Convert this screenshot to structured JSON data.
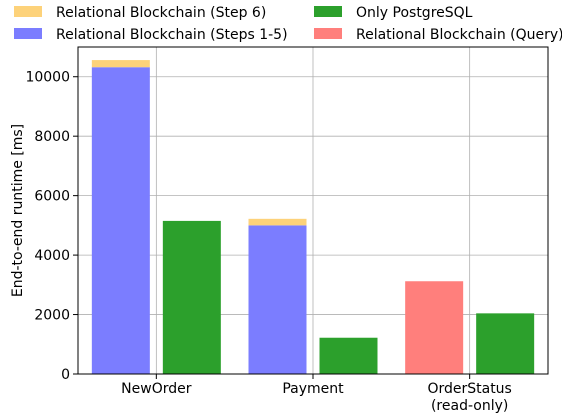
{
  "chart_data": {
    "type": "bar",
    "stacked": true,
    "ylabel": "End-to-end runtime [ms]",
    "xlabel": "",
    "ylim": [
      0,
      11000
    ],
    "yticks": [
      0,
      2000,
      4000,
      6000,
      8000,
      10000
    ],
    "grid": true,
    "legend_position": "top",
    "categories": [
      {
        "label": "NewOrder",
        "label2": ""
      },
      {
        "label": "Payment",
        "label2": ""
      },
      {
        "label": "OrderStatus",
        "label2": "(read-only)"
      }
    ],
    "series": [
      {
        "name": "Relational Blockchain (Step 6)",
        "color": "#fdd27a"
      },
      {
        "name": "Relational Blockchain (Steps 1-5)",
        "color": "#7b7dff"
      },
      {
        "name": "Only PostgreSQL",
        "color": "#2ca02c"
      },
      {
        "name": "Relational Blockchain (Query)",
        "color": "#ff7f7c"
      }
    ],
    "groups": [
      {
        "category": "NewOrder",
        "bars": [
          {
            "kind": "blockchain",
            "segments": [
              {
                "series": "Relational Blockchain (Steps 1-5)",
                "value": 10320
              },
              {
                "series": "Relational Blockchain (Step 6)",
                "value": 240
              }
            ]
          },
          {
            "kind": "postgres",
            "segments": [
              {
                "series": "Only PostgreSQL",
                "value": 5150
              }
            ]
          }
        ]
      },
      {
        "category": "Payment",
        "bars": [
          {
            "kind": "blockchain",
            "segments": [
              {
                "series": "Relational Blockchain (Steps 1-5)",
                "value": 5000
              },
              {
                "series": "Relational Blockchain (Step 6)",
                "value": 220
              }
            ]
          },
          {
            "kind": "postgres",
            "segments": [
              {
                "series": "Only PostgreSQL",
                "value": 1220
              }
            ]
          }
        ]
      },
      {
        "category": "OrderStatus",
        "bars": [
          {
            "kind": "blockchain",
            "segments": [
              {
                "series": "Relational Blockchain (Query)",
                "value": 3120
              }
            ]
          },
          {
            "kind": "postgres",
            "segments": [
              {
                "series": "Only PostgreSQL",
                "value": 2040
              }
            ]
          }
        ]
      }
    ]
  }
}
